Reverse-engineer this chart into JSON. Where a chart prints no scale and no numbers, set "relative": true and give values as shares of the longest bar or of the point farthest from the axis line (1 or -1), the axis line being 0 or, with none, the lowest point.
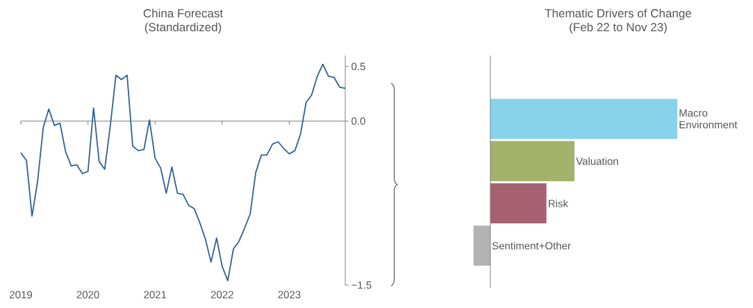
{
  "chart_data": [
    {
      "type": "line",
      "title": "China Forecast",
      "subtitle": "(Standardized)",
      "color": "#2f6190",
      "x": [
        "2019-01",
        "2019-02",
        "2019-03",
        "2019-04",
        "2019-05",
        "2019-06",
        "2019-07",
        "2019-08",
        "2019-09",
        "2019-10",
        "2019-11",
        "2019-12",
        "2020-01",
        "2020-02",
        "2020-03",
        "2020-04",
        "2020-05",
        "2020-06",
        "2020-07",
        "2020-08",
        "2020-09",
        "2020-10",
        "2020-11",
        "2020-12",
        "2021-01",
        "2021-02",
        "2021-03",
        "2021-04",
        "2021-05",
        "2021-06",
        "2021-07",
        "2021-08",
        "2021-09",
        "2021-10",
        "2021-11",
        "2021-12",
        "2022-01",
        "2022-02",
        "2022-03",
        "2022-04",
        "2022-05",
        "2022-06",
        "2022-07",
        "2022-08",
        "2022-09",
        "2022-10",
        "2022-11",
        "2022-12",
        "2023-01",
        "2023-02",
        "2023-03",
        "2023-04",
        "2023-05",
        "2023-06",
        "2023-07",
        "2023-08",
        "2023-09",
        "2023-10",
        "2023-11"
      ],
      "values": [
        -0.29,
        -0.36,
        -0.87,
        -0.55,
        -0.06,
        0.11,
        -0.04,
        -0.02,
        -0.28,
        -0.41,
        -0.4,
        -0.48,
        -0.46,
        0.12,
        -0.37,
        -0.44,
        -0.04,
        0.42,
        0.38,
        0.42,
        -0.23,
        -0.27,
        -0.26,
        0.01,
        -0.34,
        -0.43,
        -0.66,
        -0.42,
        -0.66,
        -0.67,
        -0.77,
        -0.8,
        -0.93,
        -1.08,
        -1.29,
        -1.07,
        -1.33,
        -1.46,
        -1.17,
        -1.1,
        -0.98,
        -0.85,
        -0.47,
        -0.31,
        -0.31,
        -0.21,
        -0.19,
        -0.25,
        -0.3,
        -0.27,
        -0.12,
        0.17,
        0.24,
        0.41,
        0.52,
        0.41,
        0.4,
        0.31,
        0.3
      ],
      "xlim": [
        "2019-01",
        "2023-11"
      ],
      "xticks": [
        "2019",
        "2020",
        "2021",
        "2022",
        "2023"
      ],
      "ylim": [
        -1.5,
        0.6
      ],
      "yticks": [
        0.5,
        {
          "value": 0,
          "label": "0.0"
        },
        {
          "value": -1.5,
          "label": "−1.5"
        }
      ]
    },
    {
      "type": "bar",
      "orientation": "horizontal",
      "relative": true,
      "title": "Thematic Drivers of Change",
      "subtitle": "(Feb 22 to Nov 23)",
      "categories": [
        "Macro Environment",
        "Valuation",
        "Risk",
        "Sentiment+Other"
      ],
      "values": [
        1,
        0.45,
        0.3,
        -0.09
      ],
      "colors": [
        "#87d3ec",
        "#a3b26a",
        "#a66272",
        "#b3b3b3"
      ]
    }
  ]
}
